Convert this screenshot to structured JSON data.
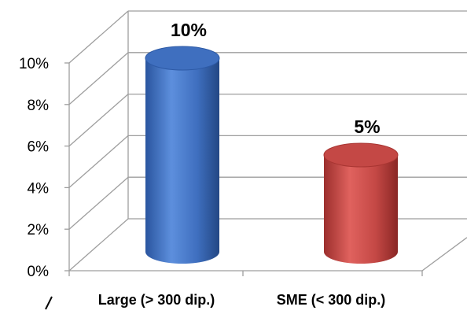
{
  "chart_data": {
    "type": "bar",
    "style": "3d-cylinder",
    "categories": [
      "Large (> 300 dip.)",
      "SME (< 300 dip.)"
    ],
    "values": [
      10,
      5
    ],
    "data_labels": [
      "10%",
      "5%"
    ],
    "y_ticks": [
      "0%",
      "2%",
      "4%",
      "6%",
      "8%",
      "10%"
    ],
    "ylim": [
      0,
      10
    ],
    "grid": true,
    "legend": "none",
    "colors": {
      "series": [
        "#3f6fbf",
        "#c44845"
      ],
      "grid": "#9e9e9e",
      "text": "#000000"
    }
  }
}
